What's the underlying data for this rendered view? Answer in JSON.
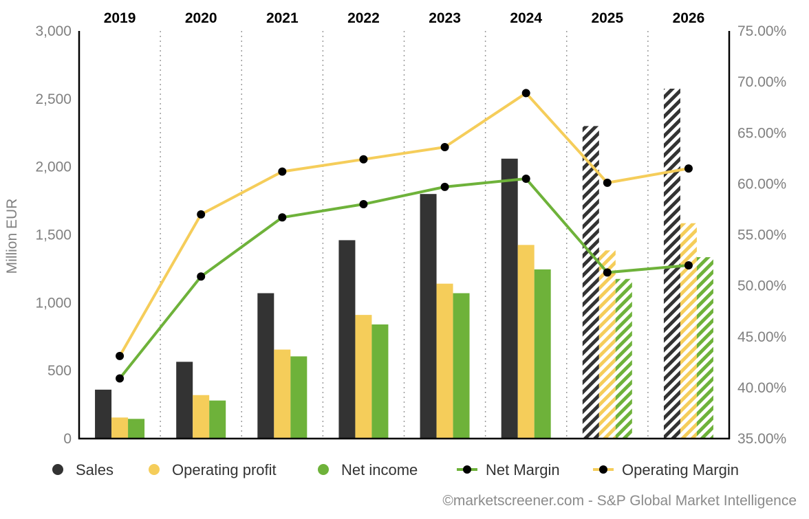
{
  "chart_data": {
    "type": "bar",
    "categories": [
      "2019",
      "2020",
      "2021",
      "2022",
      "2023",
      "2024",
      "2025",
      "2026"
    ],
    "estimated_from": "2025",
    "series": [
      {
        "name": "Sales",
        "axis": "left",
        "kind": "bar",
        "color": "#333333",
        "values": [
          360,
          565,
          1070,
          1460,
          1800,
          2060,
          2300,
          2575
        ]
      },
      {
        "name": "Operating profit",
        "axis": "left",
        "kind": "bar",
        "color": "#f5cd5a",
        "values": [
          155,
          320,
          655,
          910,
          1140,
          1425,
          1385,
          1585
        ]
      },
      {
        "name": "Net income",
        "axis": "left",
        "kind": "bar",
        "color": "#6eb23a",
        "values": [
          145,
          280,
          605,
          840,
          1070,
          1245,
          1175,
          1335
        ]
      },
      {
        "name": "Net Margin",
        "axis": "right",
        "kind": "line",
        "color": "#6eb23a",
        "values": [
          40.9,
          50.9,
          56.7,
          58.0,
          59.7,
          60.5,
          51.3,
          52.0
        ]
      },
      {
        "name": "Operating Margin",
        "axis": "right",
        "kind": "line",
        "color": "#f5cd5a",
        "values": [
          43.1,
          57.0,
          61.2,
          62.4,
          63.6,
          68.9,
          60.1,
          61.5
        ]
      }
    ],
    "ylabel": "Million EUR",
    "ylim": [
      0,
      3000
    ],
    "yticks": [
      "0",
      "500",
      "1,000",
      "1,500",
      "2,000",
      "2,500",
      "3,000"
    ],
    "y2lim": [
      35,
      75
    ],
    "y2ticks": [
      "35.00%",
      "40.00%",
      "45.00%",
      "50.00%",
      "55.00%",
      "60.00%",
      "65.00%",
      "70.00%",
      "75.00%"
    ],
    "legend_position": "bottom",
    "credit": "©marketscreener.com - S&P Global Market Intelligence"
  }
}
